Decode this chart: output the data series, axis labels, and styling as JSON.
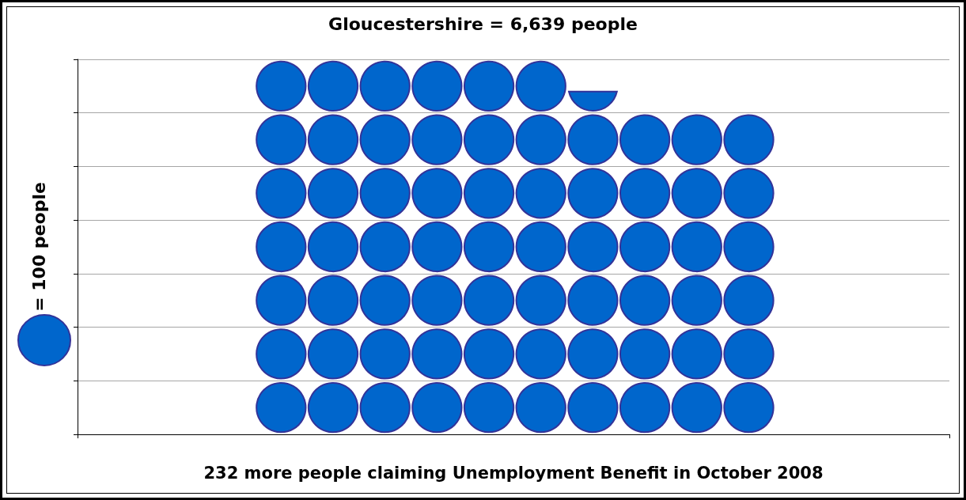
{
  "chart_data": {
    "type": "other",
    "xlabel": "232 more people claiming Unemployment Benefit in October 2008",
    "values": [
      6639,
      100
    ],
    "value_labels": [
      "Gloucestershire = 6,639 people",
      "= 100 people"
    ],
    "color": "#0066cc"
  }
}
